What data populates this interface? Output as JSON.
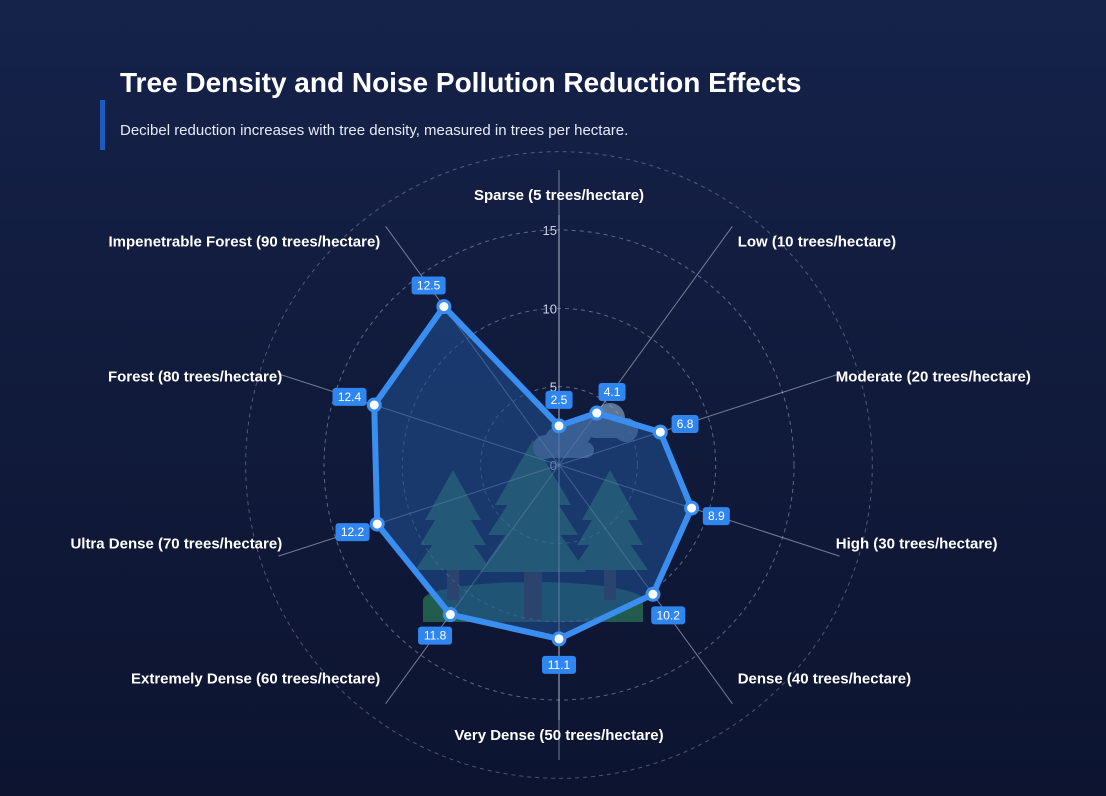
{
  "header": {
    "title": "Tree Density and Noise Pollution Reduction Effects",
    "subtitle": "Decibel reduction increases with tree density, measured in trees per hectare."
  },
  "colors": {
    "background": "#111b3c",
    "series_line": "#3a8ef0",
    "series_fill": "#1f4e8f",
    "label_badge": "#2f86f0",
    "tree": "#2e8a5c",
    "trunk": "#5a4a45",
    "accent_bar": "#1e5bbf"
  },
  "illustration": {
    "icons": [
      "tree-icon",
      "cloud-icon"
    ]
  },
  "chart_data": {
    "type": "radar",
    "title": "Tree Density and Noise Pollution Reduction Effects",
    "categories": [
      "Sparse (5 trees/hectare)",
      "Low (10 trees/hectare)",
      "Moderate (20 trees/hectare)",
      "High (30 trees/hectare)",
      "Dense (40 trees/hectare)",
      "Very Dense (50 trees/hectare)",
      "Extremely Dense (60 trees/hectare)",
      "Ultra Dense (70 trees/hectare)",
      "Forest (80 trees/hectare)",
      "Impenetrable Forest (90 trees/hectare)"
    ],
    "values": [
      2.5,
      4.1,
      6.8,
      8.9,
      10.2,
      11.1,
      11.8,
      12.2,
      12.4,
      12.5
    ],
    "value_labels": [
      "2.5",
      "4.1",
      "6.8",
      "8.9",
      "10.2",
      "11.1",
      "11.8",
      "12.2",
      "12.4",
      "12.5"
    ],
    "r_ticks": [
      "0",
      "5",
      "10",
      "15"
    ],
    "r_tick_values": [
      0,
      5,
      10,
      15
    ],
    "rlim": [
      0,
      15
    ],
    "grid": true,
    "legend": false
  }
}
